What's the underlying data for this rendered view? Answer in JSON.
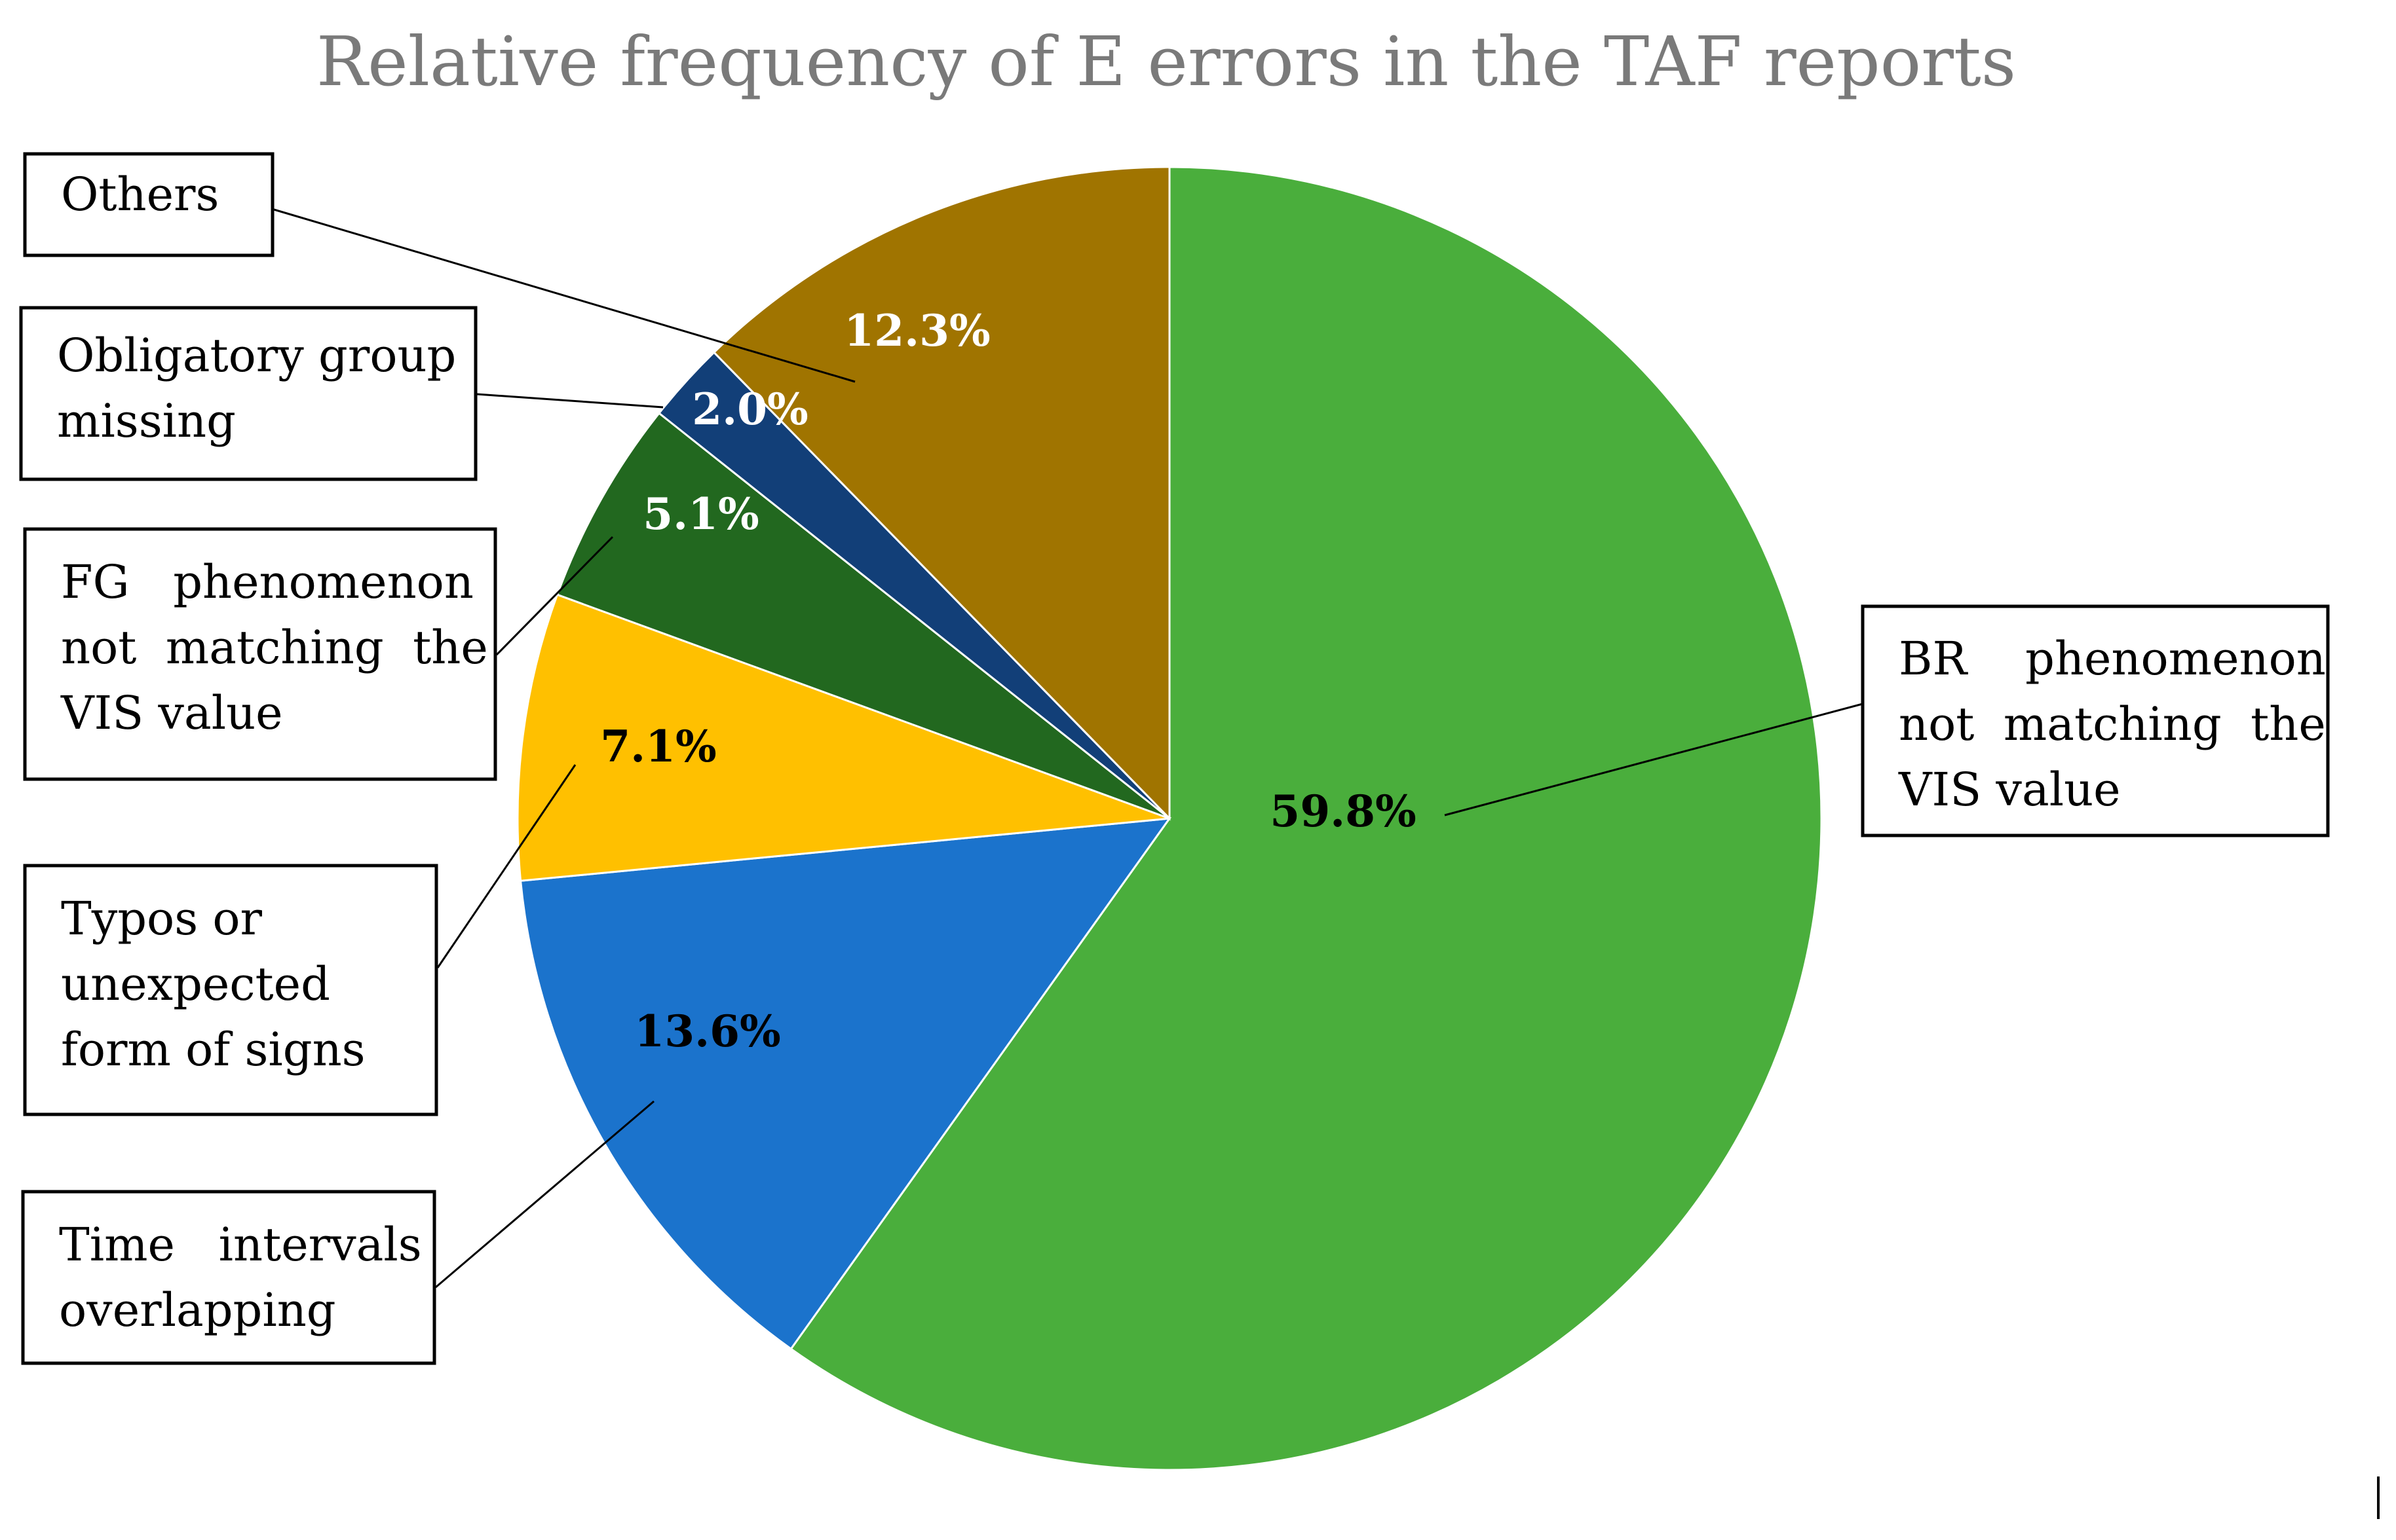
{
  "chart_data": {
    "type": "pie",
    "title": "Relative frequency of E errors in the TAF reports",
    "slices": [
      {
        "label": "BR phenomenon not matching the VIS value",
        "value": 59.8,
        "value_label": "59.8%",
        "color": "#4aae3c",
        "label_color": "#000000"
      },
      {
        "label": "Time intervals overlapping",
        "value": 13.6,
        "value_label": "13.6%",
        "color": "#1b73cc",
        "label_color": "#000000"
      },
      {
        "label": "Typos or unexpected form of signs",
        "value": 7.1,
        "value_label": "7.1%",
        "color": "#ffc000",
        "label_color": "#000000"
      },
      {
        "label": "FG phenomenon not matching the VIS value",
        "value": 5.1,
        "value_label": "5.1%",
        "color": "#22681f",
        "label_color": "#ffffff"
      },
      {
        "label": "Obligatory group missing",
        "value": 2.0,
        "value_label": "2.0%",
        "color": "#123f78",
        "label_color": "#ffffff"
      },
      {
        "label": "Others",
        "value": 12.3,
        "value_label": "12.3%",
        "color": "#a07400",
        "label_color": "#ffffff"
      }
    ],
    "start_angle": "12 o'clock",
    "direction": "clockwise",
    "legend": "callout boxes"
  },
  "callouts": [
    {
      "lines": [
        "Others"
      ]
    },
    {
      "lines": [
        "Obligatory group",
        "missing"
      ]
    },
    {
      "lines": [
        "FG   phenomenon",
        "not  matching  the",
        "VIS value"
      ]
    },
    {
      "lines": [
        "Typos or",
        "unexpected",
        "form of signs"
      ]
    },
    {
      "lines": [
        "Time   intervals",
        "overlapping"
      ]
    },
    {
      "lines": [
        "BR    phenomenon",
        "not  matching  the",
        "VIS value"
      ]
    }
  ]
}
